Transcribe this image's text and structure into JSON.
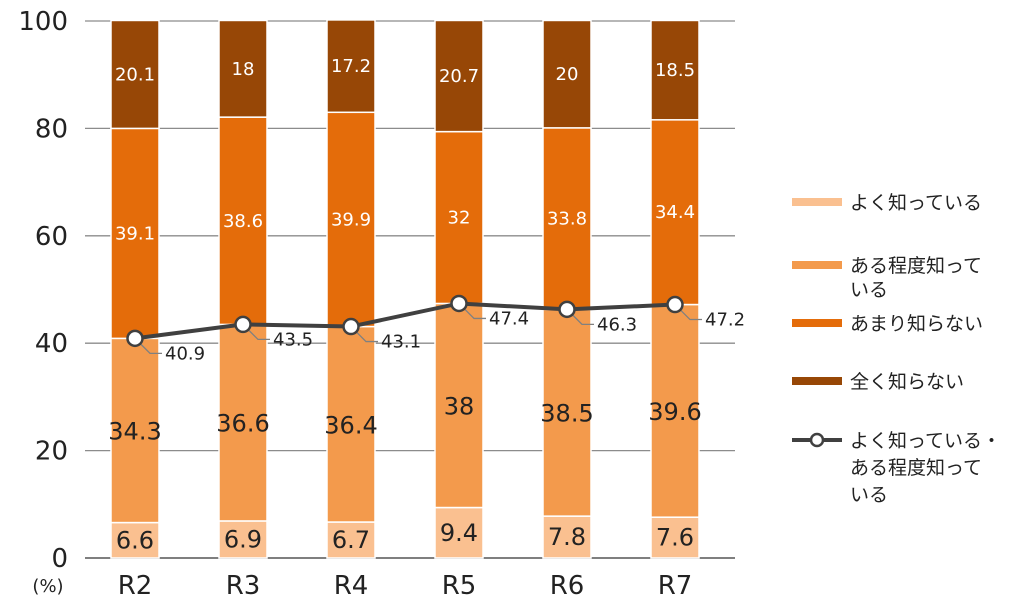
{
  "chart_data": {
    "type": "bar",
    "stacked": true,
    "categories": [
      "R2",
      "R3",
      "R4",
      "R5",
      "R6",
      "R7"
    ],
    "series": [
      {
        "name": "よく知っている",
        "values": [
          6.6,
          6.9,
          6.7,
          9.4,
          7.8,
          7.6
        ],
        "color": "#fac090"
      },
      {
        "name": "ある程度知っている",
        "values": [
          34.3,
          36.6,
          36.4,
          38,
          38.5,
          39.6
        ],
        "color": "#f39a4c"
      },
      {
        "name": "あまり知らない",
        "values": [
          39.1,
          38.6,
          39.9,
          32,
          33.8,
          34.4
        ],
        "color": "#e46c0a"
      },
      {
        "name": "全く知らない",
        "values": [
          20.1,
          18,
          17.2,
          20.7,
          20,
          18.5
        ],
        "color": "#974706"
      }
    ],
    "line_series": {
      "name": "よく知っている・ある程度知っている",
      "values": [
        40.9,
        43.5,
        43.1,
        47.4,
        46.3,
        47.2
      ],
      "color": "#404040"
    },
    "yticks": [
      "0",
      "20",
      "40",
      "60",
      "80",
      "100"
    ],
    "ylim": [
      0,
      100
    ],
    "yunit": "(%)",
    "grid": true,
    "legend_position": "right"
  }
}
